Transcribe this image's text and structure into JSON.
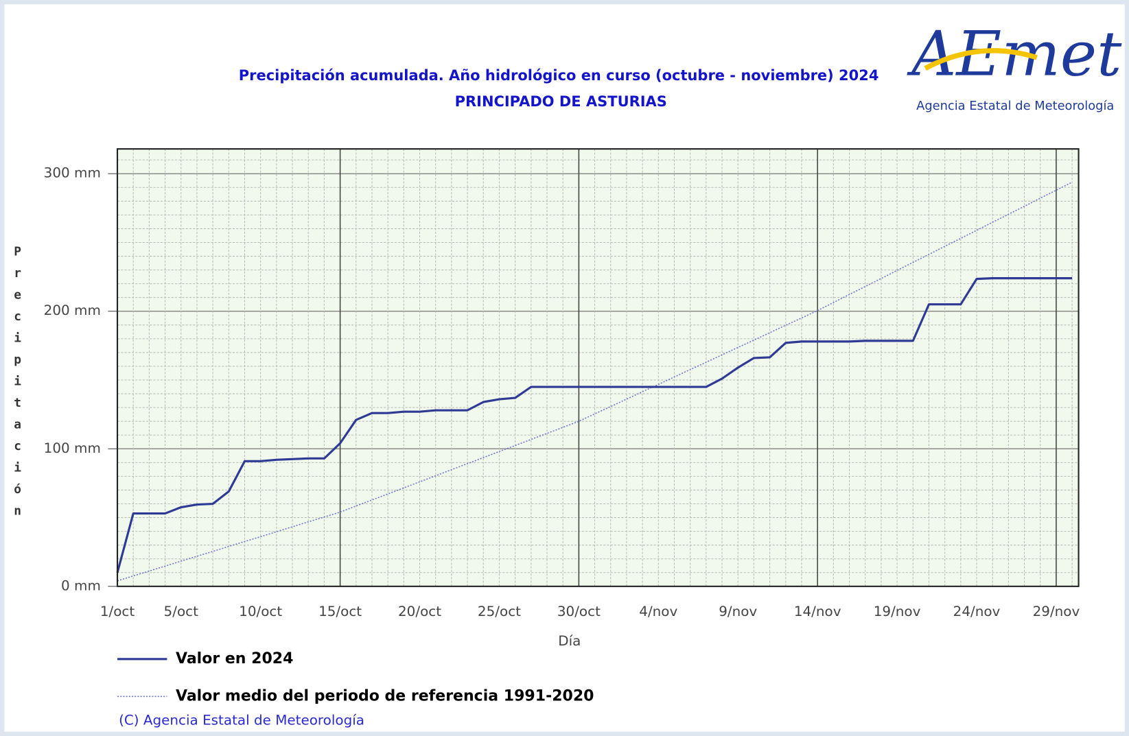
{
  "chart_data": {
    "type": "line",
    "title": "Precipitación acumulada. Año hidrológico en curso (octubre - noviembre) 2024",
    "subtitle": "PRINCIPADO DE ASTURIAS",
    "logo_text": "AEmet",
    "logo_subtext": "Agencia Estatal de Meteorología",
    "y_label": "Precipitación",
    "x_label": "Día",
    "copyright": "(C) Agencia Estatal de Meteorología",
    "categories": [
      "1/oct",
      null,
      null,
      null,
      "5/oct",
      null,
      null,
      null,
      null,
      "10/oct",
      null,
      null,
      null,
      null,
      "15/oct",
      null,
      null,
      null,
      null,
      "20/oct",
      null,
      null,
      null,
      null,
      "25/oct",
      null,
      null,
      null,
      null,
      "30/oct",
      null,
      null,
      null,
      null,
      "4/nov",
      null,
      null,
      null,
      null,
      "9/nov",
      null,
      null,
      null,
      null,
      "14/nov",
      null,
      null,
      null,
      null,
      "19/nov",
      null,
      null,
      null,
      null,
      "24/nov",
      null,
      null,
      null,
      null,
      "29/nov",
      null
    ],
    "series": [
      {
        "name": "Valor en 2024",
        "color": "#2e3a94",
        "style": "solid",
        "values": [
          10,
          53,
          53,
          53,
          57.5,
          59.5,
          60,
          69,
          91,
          91,
          92,
          92.5,
          93,
          93,
          104,
          121,
          126,
          126,
          127,
          127,
          128,
          128,
          128,
          134,
          136,
          137,
          145,
          145,
          145,
          145,
          145,
          145,
          145,
          145,
          145,
          145,
          145,
          145,
          151,
          159,
          166,
          166.5,
          177,
          178,
          178,
          178,
          178,
          178.5,
          178.5,
          178.5,
          178.5,
          205,
          205,
          205,
          223.5,
          224,
          224,
          224,
          224,
          224,
          224
        ]
      },
      {
        "name": "Valor medio del periodo de referencia 1991-2020",
        "color": "#6f78c8",
        "style": "dotted",
        "values": [
          4.0,
          7.6,
          11.1,
          14.7,
          18.3,
          21.9,
          25.4,
          29.0,
          32.6,
          36.1,
          39.7,
          43.3,
          46.9,
          50.4,
          54.0,
          58.4,
          62.8,
          67.2,
          71.6,
          76.0,
          80.4,
          84.8,
          89.2,
          93.6,
          98.0,
          102.4,
          106.8,
          111.2,
          115.6,
          120.0,
          125.4,
          130.7,
          136.1,
          141.5,
          146.8,
          152.2,
          157.6,
          162.9,
          168.3,
          173.7,
          179.0,
          184.4,
          189.8,
          195.1,
          200.5,
          206.3,
          212.2,
          218.0,
          223.8,
          229.7,
          235.5,
          241.3,
          247.2,
          253.0,
          258.8,
          264.7,
          270.5,
          276.3,
          282.2,
          288.0,
          293.8
        ]
      }
    ],
    "ylim": [
      0,
      318
    ],
    "yticks": [
      {
        "value": 0,
        "label": "0 mm"
      },
      {
        "value": 100,
        "label": "100 mm"
      },
      {
        "value": 200,
        "label": "200 mm"
      },
      {
        "value": 300,
        "label": "300 mm"
      }
    ],
    "grid": true
  }
}
